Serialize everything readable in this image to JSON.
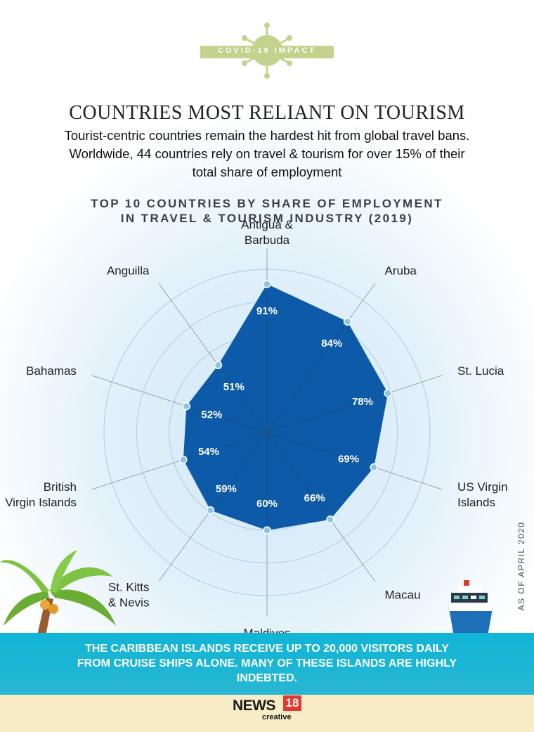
{
  "badge": {
    "text": "COVID-19 IMPACT"
  },
  "title": "COUNTRIES MOST RELIANT ON TOURISM",
  "subtitle": "Tourist-centric countries remain the hardest hit from global travel bans. Worldwide, 44 countries rely on travel & tourism for over 15% of their total share of employment",
  "side_note": "AS OF APRIL 2020",
  "footer_note": "THE CARIBBEAN ISLANDS RECEIVE UP TO 20,000 VISITORS DAILY FROM CRUISE SHIPS ALONE. MANY OF THESE ISLANDS ARE HIGHLY INDEBTED.",
  "logo": {
    "brand": "NEWS",
    "number": "18",
    "sub": "creative"
  },
  "colors": {
    "polygon_fill": "#0c5aa8",
    "grid": "#a9cbe3",
    "dot": "#8dc4e6",
    "band": "#12b4d4",
    "sand": "#f7ecc6",
    "badge": "#c5d28c"
  },
  "chart_data": {
    "type": "radar",
    "title_lines": [
      "TOP 10 COUNTRIES BY SHARE OF EMPLOYMENT",
      "IN TRAVEL & TOURISM INDUSTRY (2019)"
    ],
    "categories": [
      [
        "Antigua &",
        "Barbuda"
      ],
      [
        "Aruba"
      ],
      [
        "St. Lucia"
      ],
      [
        "US Virgin",
        "Islands"
      ],
      [
        "Macau"
      ],
      [
        "Maldives"
      ],
      [
        "St. Kitts",
        "& Nevis"
      ],
      [
        "British",
        "Virgin Islands"
      ],
      [
        "Bahamas"
      ],
      [
        "Anguilla"
      ]
    ],
    "values": [
      91,
      84,
      78,
      69,
      66,
      60,
      59,
      54,
      52,
      51
    ],
    "value_labels": [
      "91%",
      "84%",
      "78%",
      "69%",
      "66%",
      "60%",
      "59%",
      "54%",
      "52%",
      "51%"
    ],
    "radial_range": [
      0,
      100
    ],
    "unit": "%"
  }
}
